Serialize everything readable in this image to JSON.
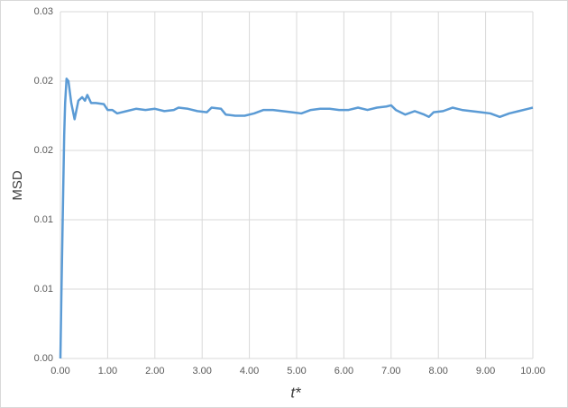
{
  "chart_data": {
    "type": "line",
    "x_label": "t*",
    "y_label": "MSD",
    "x": [
      0,
      0.02,
      0.06,
      0.08,
      0.1,
      0.13,
      0.17,
      0.23,
      0.3,
      0.38,
      0.46,
      0.52,
      0.57,
      0.65,
      0.75,
      0.92,
      1.0,
      1.1,
      1.2,
      1.4,
      1.6,
      1.8,
      2.0,
      2.2,
      2.4,
      2.5,
      2.7,
      2.9,
      3.1,
      3.2,
      3.4,
      3.5,
      3.7,
      3.9,
      4.1,
      4.3,
      4.5,
      4.7,
      4.9,
      5.1,
      5.3,
      5.5,
      5.7,
      5.9,
      6.1,
      6.3,
      6.5,
      6.7,
      6.9,
      7.0,
      7.1,
      7.3,
      7.5,
      7.7,
      7.8,
      7.9,
      8.1,
      8.3,
      8.5,
      8.7,
      8.9,
      9.1,
      9.3,
      9.5,
      9.7,
      9.9,
      10
    ],
    "series": [
      {
        "color": "#5b9bd5",
        "values": [
          0,
          0.0053,
          0.0147,
          0.0193,
          0.0221,
          0.0242,
          0.024,
          0.0221,
          0.0207,
          0.0223,
          0.0226,
          0.0223,
          0.0228,
          0.0221,
          0.0221,
          0.022,
          0.0215,
          0.0215,
          0.0212,
          0.0214,
          0.0216,
          0.0215,
          0.0216,
          0.0214,
          0.0215,
          0.0217,
          0.0216,
          0.0214,
          0.0213,
          0.0217,
          0.0216,
          0.0211,
          0.021,
          0.021,
          0.0212,
          0.0215,
          0.0215,
          0.0214,
          0.0213,
          0.0212,
          0.0215,
          0.0216,
          0.0216,
          0.0215,
          0.0215,
          0.0217,
          0.0215,
          0.0217,
          0.0218,
          0.0219,
          0.0215,
          0.0211,
          0.0214,
          0.0211,
          0.0209,
          0.0213,
          0.0214,
          0.0217,
          0.0215,
          0.0214,
          0.0213,
          0.0212,
          0.0209,
          0.0212,
          0.0214,
          0.0216,
          0.0217
        ]
      }
    ],
    "xlim": [
      0,
      10
    ],
    "xticks": [
      {
        "value": 0,
        "label": "0.00"
      },
      {
        "value": 1,
        "label": "1.00"
      },
      {
        "value": 2,
        "label": "2.00"
      },
      {
        "value": 3,
        "label": "3.00"
      },
      {
        "value": 4,
        "label": "4.00"
      },
      {
        "value": 5,
        "label": "5.00"
      },
      {
        "value": 6,
        "label": "6.00"
      },
      {
        "value": 7,
        "label": "7.00"
      },
      {
        "value": 8,
        "label": "8.00"
      },
      {
        "value": 9,
        "label": "9.00"
      },
      {
        "value": 10,
        "label": "10.00"
      }
    ],
    "ylim": [
      0,
      0.03
    ],
    "yticks": [
      {
        "value": 0,
        "label": "0.00"
      },
      {
        "value": 0.006,
        "label": "0.01"
      },
      {
        "value": 0.012,
        "label": "0.01"
      },
      {
        "value": 0.018,
        "label": "0.02"
      },
      {
        "value": 0.024,
        "label": "0.02"
      },
      {
        "value": 0.03,
        "label": "0.03"
      }
    ],
    "grid": true
  }
}
